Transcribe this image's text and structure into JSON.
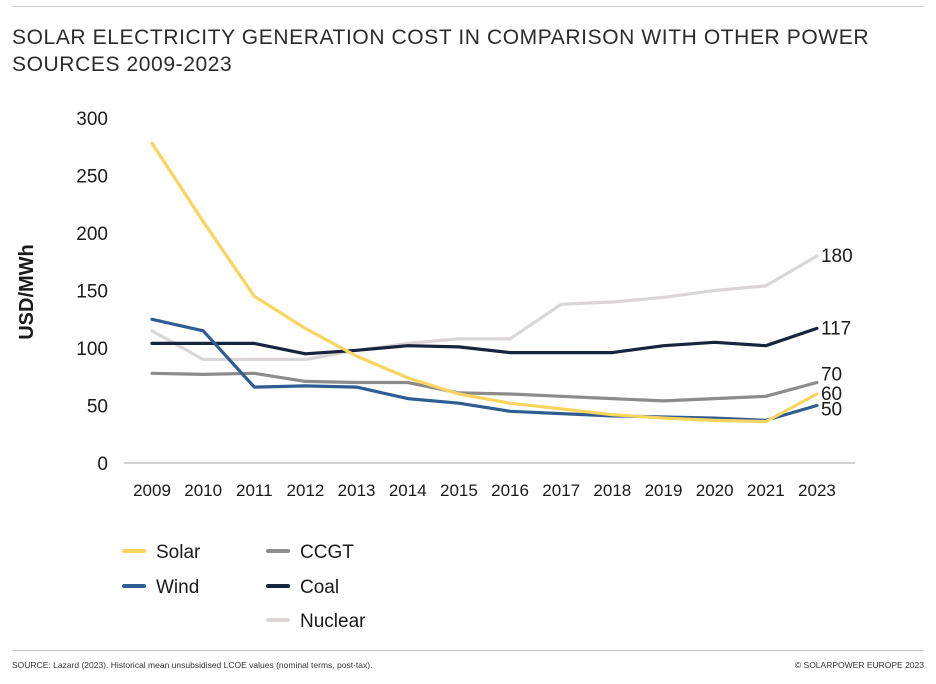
{
  "title_line1": "SOLAR ELECTRICITY GENERATION COST IN COMPARISON WITH OTHER POWER",
  "title_line2": "SOURCES 2009-2023",
  "source": "SOURCE: Lazard (2023). Historical mean unsubsidised LCOE values (nominal terms, post-tax).",
  "copyright": "© SOLARPOWER EUROPE 2023",
  "chart_data": {
    "type": "line",
    "title": "SOLAR ELECTRICITY GENERATION COST IN COMPARISON WITH OTHER POWER SOURCES 2009-2023",
    "xlabel": "",
    "ylabel": "USD/MWh",
    "ylim": [
      0,
      300
    ],
    "yticks": [
      0,
      50,
      100,
      150,
      200,
      250,
      300
    ],
    "grid": false,
    "legend_position": "bottom-left",
    "categories": [
      "2009",
      "2010",
      "2011",
      "2012",
      "2013",
      "2014",
      "2015",
      "2016",
      "2017",
      "2018",
      "2019",
      "2020",
      "2021",
      "2023"
    ],
    "series": [
      {
        "name": "Solar",
        "color": "#f9d55f",
        "start_index": 0,
        "values": [
          278,
          210,
          145,
          117,
          93,
          74,
          60,
          52,
          47,
          42,
          39,
          37,
          36,
          60
        ],
        "end_label": "60"
      },
      {
        "name": "Wind",
        "color": "#2f5d91",
        "start_index": 0,
        "values": [
          125,
          115,
          66,
          67,
          66,
          56,
          52,
          45,
          43,
          41,
          40,
          39,
          37,
          50
        ],
        "end_label": "50"
      },
      {
        "name": "CCGT",
        "color": "#8c8c8c",
        "start_index": 0,
        "values": [
          78,
          77,
          78,
          71,
          70,
          70,
          61,
          60,
          58,
          56,
          54,
          56,
          58,
          70
        ],
        "end_label": "70"
      },
      {
        "name": "Coal",
        "color": "#16253d",
        "start_index": 0,
        "values": [
          104,
          104,
          104,
          95,
          98,
          102,
          101,
          96,
          96,
          96,
          102,
          105,
          102,
          117
        ],
        "end_label": "117"
      },
      {
        "name": "Nuclear",
        "color": "#dbd6d6",
        "start_index": 0,
        "values": [
          115,
          90,
          90,
          90,
          98,
          104,
          108,
          108,
          138,
          140,
          144,
          150,
          154,
          180
        ],
        "end_label": "180"
      }
    ]
  }
}
